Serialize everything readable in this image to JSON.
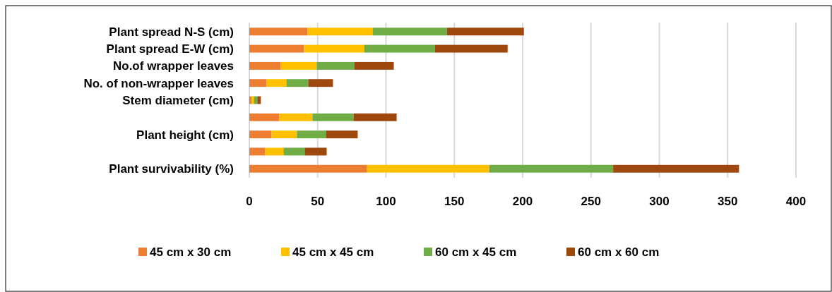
{
  "chart_data": {
    "type": "bar",
    "orientation": "horizontal",
    "stacked": true,
    "categories": [
      "Plant spread N-S (cm)",
      "Plant spread E-W (cm)",
      "No.of wrapper leaves",
      "No. of non-wrapper leaves",
      "Stem diameter (cm)",
      null,
      "Plant height (cm)",
      null,
      "Plant survivability (%)"
    ],
    "series": [
      {
        "name": "45 cm x 30 cm",
        "color": "#ed7d31",
        "values": [
          42.6,
          40.0,
          22.9,
          12.6,
          1.6,
          21.9,
          16.2,
          11.6,
          86.2
        ]
      },
      {
        "name": "45 cm x 45 cm",
        "color": "#ffc000",
        "values": [
          47.6,
          44.0,
          26.4,
          14.5,
          1.7,
          24.3,
          18.6,
          13.4,
          89.3
        ]
      },
      {
        "name": "60 cm x 45 cm",
        "color": "#70ad47",
        "values": [
          54.3,
          51.7,
          27.4,
          16.0,
          2.6,
          30.0,
          21.2,
          15.5,
          90.7
        ]
      },
      {
        "name": "60 cm x 60 cm",
        "color": "#9e480e",
        "values": [
          56.4,
          53.3,
          29.0,
          18.1,
          2.5,
          31.6,
          23.3,
          16.1,
          92.1
        ]
      }
    ],
    "xlim": [
      0,
      400
    ],
    "xticks": [
      0,
      50,
      100,
      150,
      200,
      250,
      300,
      350,
      400
    ],
    "grid": "x",
    "legend": "bottom"
  }
}
